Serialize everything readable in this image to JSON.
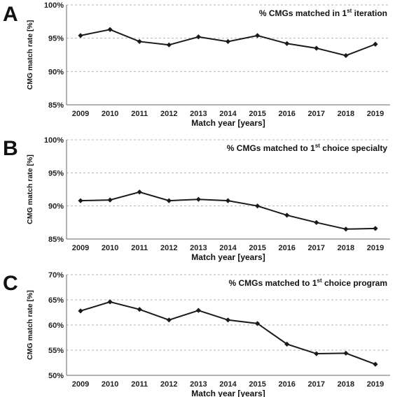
{
  "chart_data": [
    {
      "type": "line",
      "panel": "A",
      "annotation": {
        "pre": "% CMGs matched in 1",
        "sup": "st",
        "post": " iteration"
      },
      "xlabel": "Match year [years]",
      "ylabel": "CMG match rate [%]",
      "ylim": [
        85,
        100
      ],
      "yticks": [
        85,
        90,
        95,
        100
      ],
      "ytick_labels": [
        "85%",
        "90%",
        "95%",
        "100%"
      ],
      "grid": "horizontal dashed",
      "x": [
        "2009",
        "2010",
        "2011",
        "2012",
        "2013",
        "2014",
        "2015",
        "2016",
        "2017",
        "2018",
        "2019"
      ],
      "values": [
        95.4,
        96.3,
        94.5,
        94.0,
        95.2,
        94.5,
        95.4,
        94.2,
        93.5,
        92.4,
        94.1
      ]
    },
    {
      "type": "line",
      "panel": "B",
      "annotation": {
        "pre": "% CMGs matched to 1",
        "sup": "st",
        "post": " choice specialty"
      },
      "xlabel": "Match year [years]",
      "ylabel": "CMG match rate [%]",
      "ylim": [
        85,
        100
      ],
      "yticks": [
        85,
        90,
        95,
        100
      ],
      "ytick_labels": [
        "85%",
        "90%",
        "95%",
        "100%"
      ],
      "grid": "horizontal dashed",
      "x": [
        "2009",
        "2010",
        "2011",
        "2012",
        "2013",
        "2014",
        "2015",
        "2016",
        "2017",
        "2018",
        "2019"
      ],
      "values": [
        90.8,
        90.9,
        92.1,
        90.8,
        91.0,
        90.8,
        90.0,
        88.6,
        87.5,
        86.5,
        86.6
      ]
    },
    {
      "type": "line",
      "panel": "C",
      "annotation": {
        "pre": "% CMGs matched to 1",
        "sup": "st",
        "post": " choice program"
      },
      "xlabel": "Match year [years]",
      "ylabel": "CMG match rate [%]",
      "ylim": [
        50,
        70
      ],
      "yticks": [
        50,
        55,
        60,
        65,
        70
      ],
      "ytick_labels": [
        "50%",
        "55%",
        "60%",
        "65%",
        "70%"
      ],
      "grid": "horizontal dashed",
      "x": [
        "2009",
        "2010",
        "2011",
        "2012",
        "2013",
        "2014",
        "2015",
        "2016",
        "2017",
        "2018",
        "2019"
      ],
      "values": [
        62.8,
        64.6,
        63.1,
        61.0,
        62.9,
        61.0,
        60.3,
        56.2,
        54.3,
        54.4,
        52.2
      ]
    }
  ]
}
